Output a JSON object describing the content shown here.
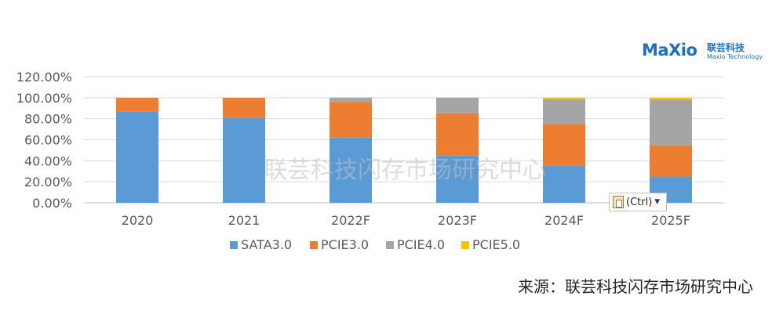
{
  "chart_data": {
    "type": "bar",
    "stacked": true,
    "categories": [
      "2020",
      "2021",
      "2022F",
      "2023F",
      "2024F",
      "2025F"
    ],
    "series": [
      {
        "name": "SATA3.0",
        "color": "#5b9bd5",
        "values": [
          87,
          81,
          62,
          45,
          35,
          25
        ]
      },
      {
        "name": "PCIE3.0",
        "color": "#ed7d31",
        "values": [
          13,
          19,
          34,
          40,
          40,
          30
        ]
      },
      {
        "name": "PCIE4.0",
        "color": "#a5a5a5",
        "values": [
          0,
          0,
          4,
          15,
          24,
          43
        ]
      },
      {
        "name": "PCIE5.0",
        "color": "#ffc000",
        "values": [
          0,
          0,
          0,
          0,
          1,
          2
        ]
      }
    ],
    "ylim": [
      0,
      120
    ],
    "yticks": [
      "0.00%",
      "20.00%",
      "40.00%",
      "60.00%",
      "80.00%",
      "100.00%",
      "120.00%"
    ],
    "grid": true,
    "legend_position": "bottom"
  },
  "watermark": "联芸科技闪存市场研究中心",
  "logo": {
    "wordmark": "MaXio",
    "cn": "联芸科技",
    "en": "Maxio Technology"
  },
  "source": "来源：联芸科技闪存市场研究中心",
  "paste_options": {
    "label": "(Ctrl)"
  }
}
